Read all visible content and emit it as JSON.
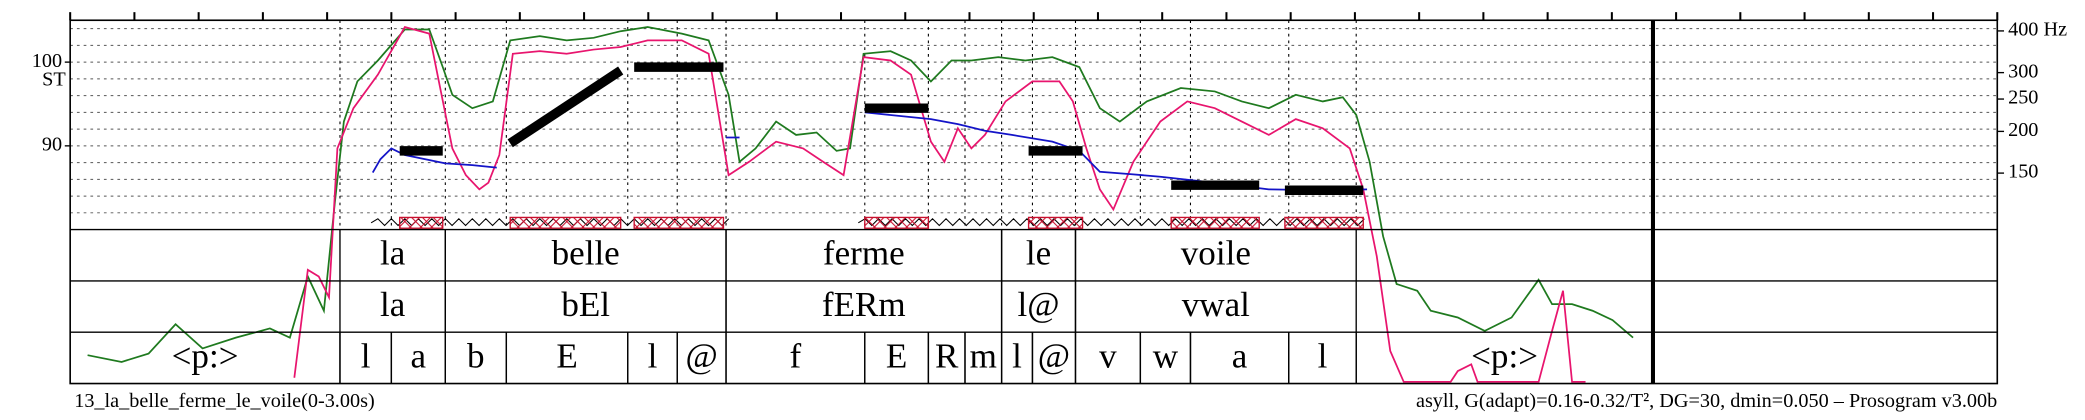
{
  "chart_data": {
    "type": "prosogram",
    "file_label": "13_la_belle_ferme_le_voile(0-3.00s)",
    "settings_label": "asyll, G(adapt)=0.16-0.32/T², DG=30, dmin=0.050 – Prosogram v3.00b",
    "y_label": "ST",
    "xlim": [
      0,
      3
    ],
    "xticks": [
      0,
      0.1,
      0.2,
      0.3,
      0.4,
      0.5,
      0.6,
      0.7,
      0.8,
      0.9,
      1,
      1.1,
      1.2,
      1.3,
      1.4,
      1.5,
      1.6,
      1.7,
      1.8,
      1.9,
      2,
      2.1,
      2.2,
      2.3,
      2.4,
      2.5,
      2.6,
      2.7,
      2.8,
      2.9,
      3
    ],
    "ylim": [
      80,
      105
    ],
    "yticks": [
      90,
      100
    ],
    "minor_yticks": [
      82,
      84,
      86,
      88,
      90,
      92,
      94,
      96,
      98,
      100,
      102,
      104
    ],
    "y2ticks": [
      {
        "value": 400,
        "label": "400 Hz"
      },
      300,
      250,
      200,
      150
    ],
    "grid": true,
    "series": [
      {
        "color": "#1f7a1f",
        "x": [
          0.027,
          0.08,
          0.122,
          0.164,
          0.206,
          0.258,
          0.311,
          0.342,
          0.37,
          0.395,
          0.412,
          0.426,
          0.447,
          0.479,
          0.521,
          0.559,
          0.58,
          0.595,
          0.626,
          0.658,
          0.685,
          0.731,
          0.773,
          0.815,
          0.857,
          0.899,
          0.952,
          0.994,
          1.025,
          1.042,
          1.067,
          1.099,
          1.13,
          1.162,
          1.193,
          1.214,
          1.235,
          1.277,
          1.309,
          1.34,
          1.372,
          1.403,
          1.445,
          1.487,
          1.529,
          1.571,
          1.603,
          1.634,
          1.676,
          1.729,
          1.782,
          1.824,
          1.866,
          1.908,
          1.95,
          1.981,
          2.002,
          2.023,
          2.044,
          2.065,
          2.097,
          2.118,
          2.16,
          2.202,
          2.244,
          2.286,
          2.307,
          2.338,
          2.37,
          2.401,
          2.433
        ],
        "values": [
          65.0,
          64.2,
          65.2,
          68.7,
          65.8,
          67.1,
          68.2,
          67.1,
          74.4,
          70.3,
          83.2,
          92.9,
          97.7,
          100.2,
          103.9,
          103.9,
          99.4,
          96.1,
          94.5,
          95.3,
          102.6,
          103.1,
          102.6,
          102.9,
          103.7,
          104.2,
          103.4,
          102.6,
          96.1,
          88.1,
          89.7,
          92.9,
          91.3,
          91.6,
          89.4,
          89.7,
          101.0,
          101.3,
          100.2,
          97.7,
          100.2,
          100.2,
          100.6,
          100.2,
          100.6,
          99.4,
          94.5,
          92.9,
          95.3,
          96.9,
          96.5,
          95.3,
          94.5,
          96.1,
          95.3,
          95.8,
          93.7,
          88.1,
          79.2,
          73.5,
          72.7,
          70.3,
          69.5,
          67.9,
          69.5,
          74.0,
          71.1,
          71.1,
          70.3,
          69.2,
          67.1
        ]
      },
      {
        "color": "#e8156e",
        "x": [
          0.349,
          0.37,
          0.387,
          0.403,
          0.416,
          0.441,
          0.479,
          0.521,
          0.559,
          0.574,
          0.595,
          0.616,
          0.637,
          0.651,
          0.668,
          0.689,
          0.731,
          0.773,
          0.815,
          0.857,
          0.899,
          0.952,
          0.994,
          1.025,
          1.057,
          1.099,
          1.141,
          1.172,
          1.204,
          1.235,
          1.277,
          1.309,
          1.34,
          1.361,
          1.382,
          1.403,
          1.424,
          1.456,
          1.498,
          1.54,
          1.561,
          1.582,
          1.603,
          1.624,
          1.655,
          1.697,
          1.739,
          1.782,
          1.824,
          1.866,
          1.908,
          1.95,
          1.992,
          2.013,
          2.034,
          2.055,
          2.076,
          2.149,
          2.16,
          2.181,
          2.191,
          2.286,
          2.307,
          2.324,
          2.338,
          2.359
        ],
        "values": [
          62.3,
          75.2,
          74.4,
          71.9,
          89.7,
          94.5,
          98.5,
          104.2,
          103.4,
          97.7,
          89.7,
          86.5,
          84.8,
          85.6,
          88.9,
          101.0,
          101.3,
          101.0,
          101.5,
          101.8,
          102.6,
          102.6,
          101.0,
          86.5,
          88.1,
          90.5,
          89.7,
          88.1,
          86.5,
          100.6,
          100.2,
          98.5,
          90.5,
          88.1,
          92.1,
          89.7,
          91.3,
          95.3,
          97.7,
          97.7,
          95.3,
          89.7,
          84.8,
          82.4,
          88.1,
          92.9,
          95.3,
          94.5,
          92.9,
          91.3,
          93.2,
          92.1,
          89.7,
          84.8,
          76.8,
          65.5,
          61.8,
          61.8,
          63.1,
          63.9,
          61.8,
          61.8,
          67.9,
          72.7,
          61.8,
          61.8
        ]
      },
      {
        "color": "#1414c8",
        "x": [
          0.471,
          0.483,
          0.5,
          0.521,
          0.584,
          0.626,
          0.664,
          0.85,
          1.021,
          1.042,
          1.14,
          1.237,
          1.34,
          1.382,
          1.424,
          1.466,
          1.529,
          1.571,
          1.603,
          1.655,
          1.697,
          1.782,
          1.866,
          1.95,
          2.019
        ],
        "values": [
          86.8,
          88.4,
          89.7,
          88.9,
          87.9,
          87.7,
          87.4,
          null,
          91.0,
          91.0,
          null,
          94.0,
          93.2,
          92.6,
          91.8,
          91.3,
          90.5,
          89.4,
          86.9,
          86.6,
          86.3,
          85.6,
          84.8,
          84.7,
          84.8
        ]
      }
    ],
    "stylization": {
      "color": "#000000",
      "nucleus_color": "#c8102e",
      "segments": [
        {
          "x": [
            0.513,
            0.58
          ],
          "values": [
            89.4,
            89.4
          ]
        },
        {
          "x": [
            0.685,
            0.857
          ],
          "values": [
            90.3,
            99.0
          ]
        },
        {
          "x": [
            0.878,
            1.017
          ],
          "values": [
            99.4,
            99.4
          ]
        },
        {
          "x": [
            1.237,
            1.336
          ],
          "values": [
            94.5,
            94.5
          ]
        },
        {
          "x": [
            1.492,
            1.576
          ],
          "values": [
            89.4,
            89.4
          ]
        },
        {
          "x": [
            1.714,
            1.851
          ],
          "values": [
            85.3,
            85.3
          ]
        },
        {
          "x": [
            1.891,
            2.013
          ],
          "values": [
            84.7,
            84.7
          ]
        }
      ]
    },
    "tiers": [
      {
        "intervals": [
          {
            "start": 0.42,
            "end": 0.584,
            "text": "la"
          },
          {
            "start": 0.584,
            "end": 1.021,
            "text": "belle"
          },
          {
            "start": 1.021,
            "end": 1.45,
            "text": "ferme"
          },
          {
            "start": 1.45,
            "end": 1.565,
            "text": "le"
          },
          {
            "start": 1.565,
            "end": 2.002,
            "text": "voile"
          }
        ]
      },
      {
        "intervals": [
          {
            "start": 0.42,
            "end": 0.584,
            "text": "la"
          },
          {
            "start": 0.584,
            "end": 1.021,
            "text": "bEl"
          },
          {
            "start": 1.021,
            "end": 1.45,
            "text": "fERm"
          },
          {
            "start": 1.45,
            "end": 1.565,
            "text": "l@"
          },
          {
            "start": 1.565,
            "end": 2.002,
            "text": "vwal"
          }
        ]
      },
      {
        "intervals": [
          {
            "start": 0,
            "end": 0.42,
            "text": "<p:>"
          },
          {
            "start": 0.42,
            "end": 0.5,
            "text": "l"
          },
          {
            "start": 0.5,
            "end": 0.584,
            "text": "a"
          },
          {
            "start": 0.584,
            "end": 0.679,
            "text": "b"
          },
          {
            "start": 0.679,
            "end": 0.868,
            "text": "E"
          },
          {
            "start": 0.868,
            "end": 0.945,
            "text": "l"
          },
          {
            "start": 0.945,
            "end": 1.021,
            "text": "@"
          },
          {
            "start": 1.021,
            "end": 1.237,
            "text": "f"
          },
          {
            "start": 1.237,
            "end": 1.336,
            "text": "E"
          },
          {
            "start": 1.336,
            "end": 1.393,
            "text": "R"
          },
          {
            "start": 1.393,
            "end": 1.45,
            "text": "m"
          },
          {
            "start": 1.45,
            "end": 1.498,
            "text": "l"
          },
          {
            "start": 1.498,
            "end": 1.565,
            "text": "@"
          },
          {
            "start": 1.565,
            "end": 1.666,
            "text": "v"
          },
          {
            "start": 1.666,
            "end": 1.744,
            "text": "w"
          },
          {
            "start": 1.744,
            "end": 1.897,
            "text": "a"
          },
          {
            "start": 1.897,
            "end": 2.002,
            "text": "l"
          },
          {
            "start": 2.002,
            "end": 2.464,
            "text": "<p:>"
          }
        ]
      }
    ]
  }
}
